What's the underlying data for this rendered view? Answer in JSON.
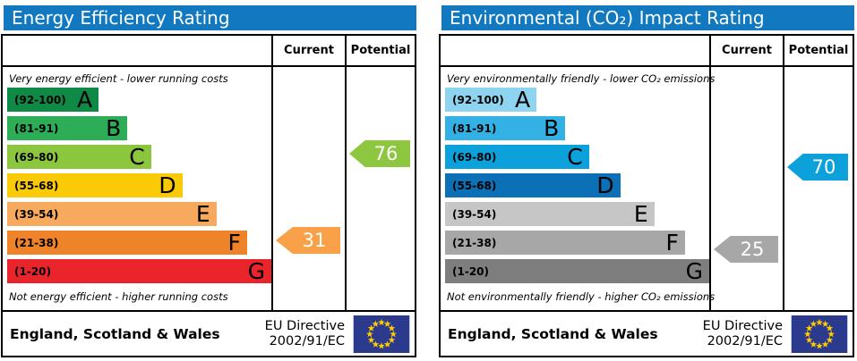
{
  "colors": {
    "header_bg": "#1279c0",
    "flag_bg": "#2b3a8c",
    "flag_star": "#ffcc00"
  },
  "chart_data": {
    "type": "bar",
    "layout": "epc-dual-panel-horizontal-bars",
    "panels": [
      {
        "title": "Energy Efficiency Rating",
        "col_current": "Current",
        "col_potential": "Potential",
        "top_note": "Very energy efficient - lower running costs",
        "bottom_note": "Not energy efficient - higher running costs",
        "bands": [
          {
            "letter": "A",
            "range_label": "(92-100)",
            "lo": 92,
            "hi": 100,
            "color": "#0e8a46",
            "width_pct": 34.6
          },
          {
            "letter": "B",
            "range_label": "(81-91)",
            "lo": 81,
            "hi": 91,
            "color": "#2dad55",
            "width_pct": 45.5
          },
          {
            "letter": "C",
            "range_label": "(69-80)",
            "lo": 69,
            "hi": 80,
            "color": "#8cc63f",
            "width_pct": 54.5
          },
          {
            "letter": "D",
            "range_label": "(55-68)",
            "lo": 55,
            "hi": 68,
            "color": "#fbca07",
            "width_pct": 66.3
          },
          {
            "letter": "E",
            "range_label": "(39-54)",
            "lo": 39,
            "hi": 54,
            "color": "#f7a95e",
            "width_pct": 79.2
          },
          {
            "letter": "F",
            "range_label": "(21-38)",
            "lo": 21,
            "hi": 38,
            "color": "#ee8329",
            "width_pct": 90.8
          },
          {
            "letter": "G",
            "range_label": "(1-20)",
            "lo": 1,
            "hi": 20,
            "color": "#e9242b",
            "width_pct": 100
          }
        ],
        "current": {
          "value": 31,
          "color": "#f9a148"
        },
        "potential": {
          "value": 76,
          "color": "#8dc63f"
        },
        "footer_region": "England, Scotland & Wales",
        "directive_line1": "EU Directive",
        "directive_line2": "2002/91/EC"
      },
      {
        "title": "Environmental (CO₂) Impact Rating",
        "col_current": "Current",
        "col_potential": "Potential",
        "top_note": "Very environmentally friendly - lower CO₂ emissions",
        "bottom_note": "Not environmentally friendly - higher CO₂ emissions",
        "bands": [
          {
            "letter": "A",
            "range_label": "(92-100)",
            "lo": 92,
            "hi": 100,
            "color": "#8ed4f0",
            "width_pct": 34.6
          },
          {
            "letter": "B",
            "range_label": "(81-91)",
            "lo": 81,
            "hi": 91,
            "color": "#33b1e4",
            "width_pct": 45.5
          },
          {
            "letter": "C",
            "range_label": "(69-80)",
            "lo": 69,
            "hi": 80,
            "color": "#0da1dc",
            "width_pct": 54.5
          },
          {
            "letter": "D",
            "range_label": "(55-68)",
            "lo": 55,
            "hi": 68,
            "color": "#0b70b5",
            "width_pct": 66.3
          },
          {
            "letter": "E",
            "range_label": "(39-54)",
            "lo": 39,
            "hi": 54,
            "color": "#c6c6c6",
            "width_pct": 79.2
          },
          {
            "letter": "F",
            "range_label": "(21-38)",
            "lo": 21,
            "hi": 38,
            "color": "#a7a7a7",
            "width_pct": 90.8
          },
          {
            "letter": "G",
            "range_label": "(1-20)",
            "lo": 1,
            "hi": 20,
            "color": "#7e7e7e",
            "width_pct": 100
          }
        ],
        "current": {
          "value": 25,
          "color": "#a7a7a7"
        },
        "potential": {
          "value": 70,
          "color": "#0da1dc"
        },
        "footer_region": "England, Scotland & Wales",
        "directive_line1": "EU Directive",
        "directive_line2": "2002/91/EC"
      }
    ]
  }
}
